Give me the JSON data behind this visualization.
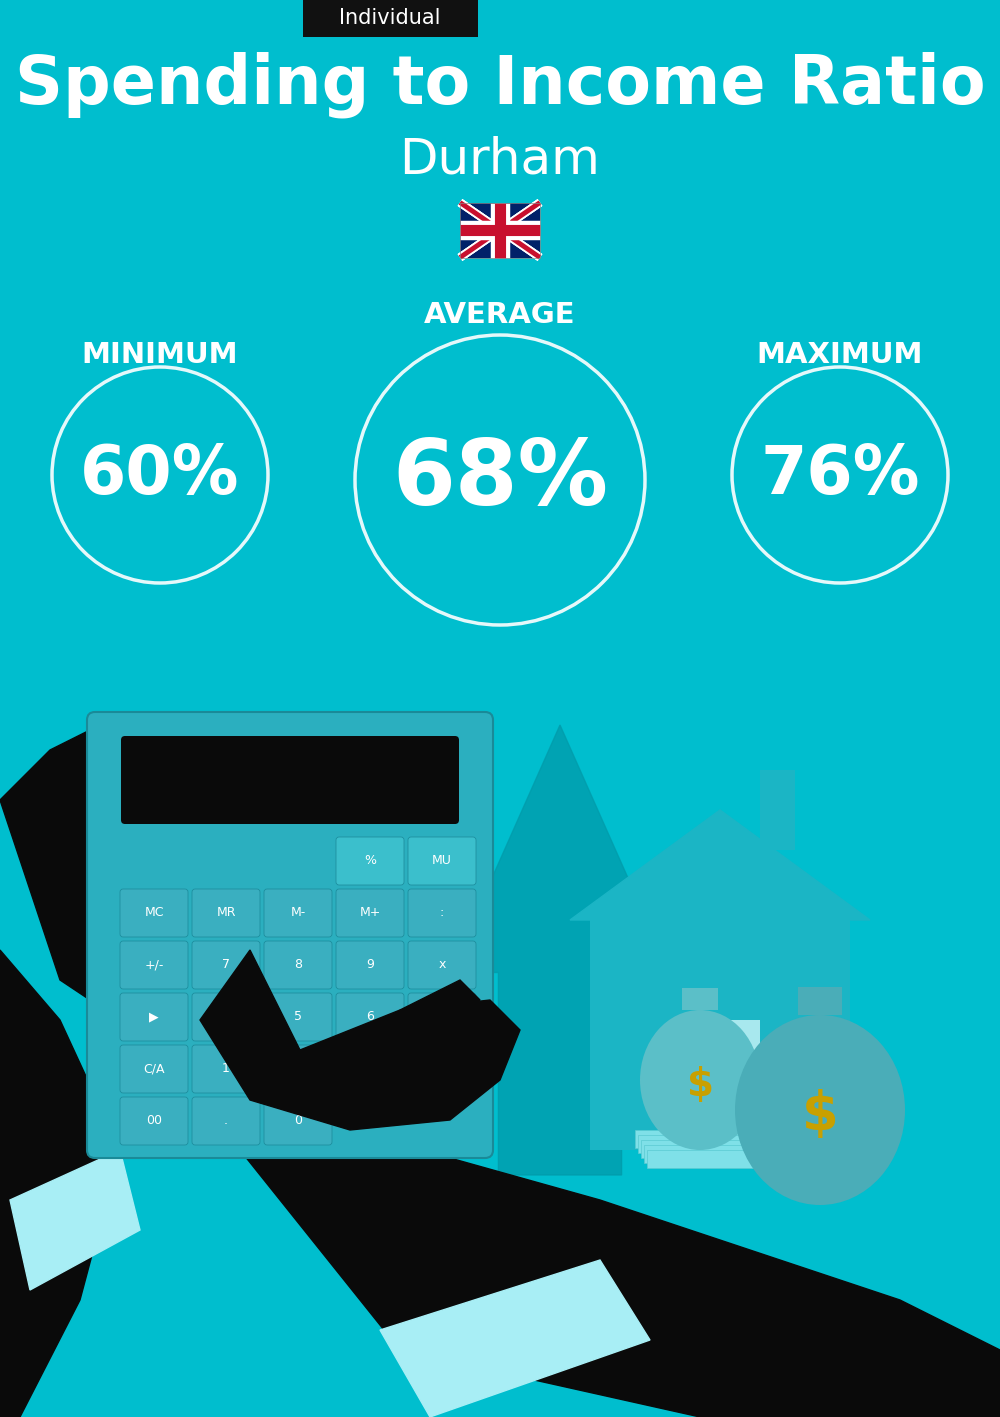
{
  "title": "Spending to Income Ratio",
  "subtitle": "Durham",
  "badge_text": "Individual",
  "badge_bg": "#111111",
  "badge_fg": "#ffffff",
  "bg_color": "#00BECE",
  "text_color": "#ffffff",
  "min_label": "MINIMUM",
  "avg_label": "AVERAGE",
  "max_label": "MAXIMUM",
  "min_value": "60%",
  "avg_value": "68%",
  "max_value": "76%",
  "title_fontsize": 48,
  "subtitle_fontsize": 36,
  "badge_fontsize": 15,
  "label_fontsize": 21,
  "min_value_fontsize": 48,
  "avg_value_fontsize": 65,
  "max_value_fontsize": 48,
  "figsize": [
    10,
    14.17
  ],
  "dpi": 100
}
